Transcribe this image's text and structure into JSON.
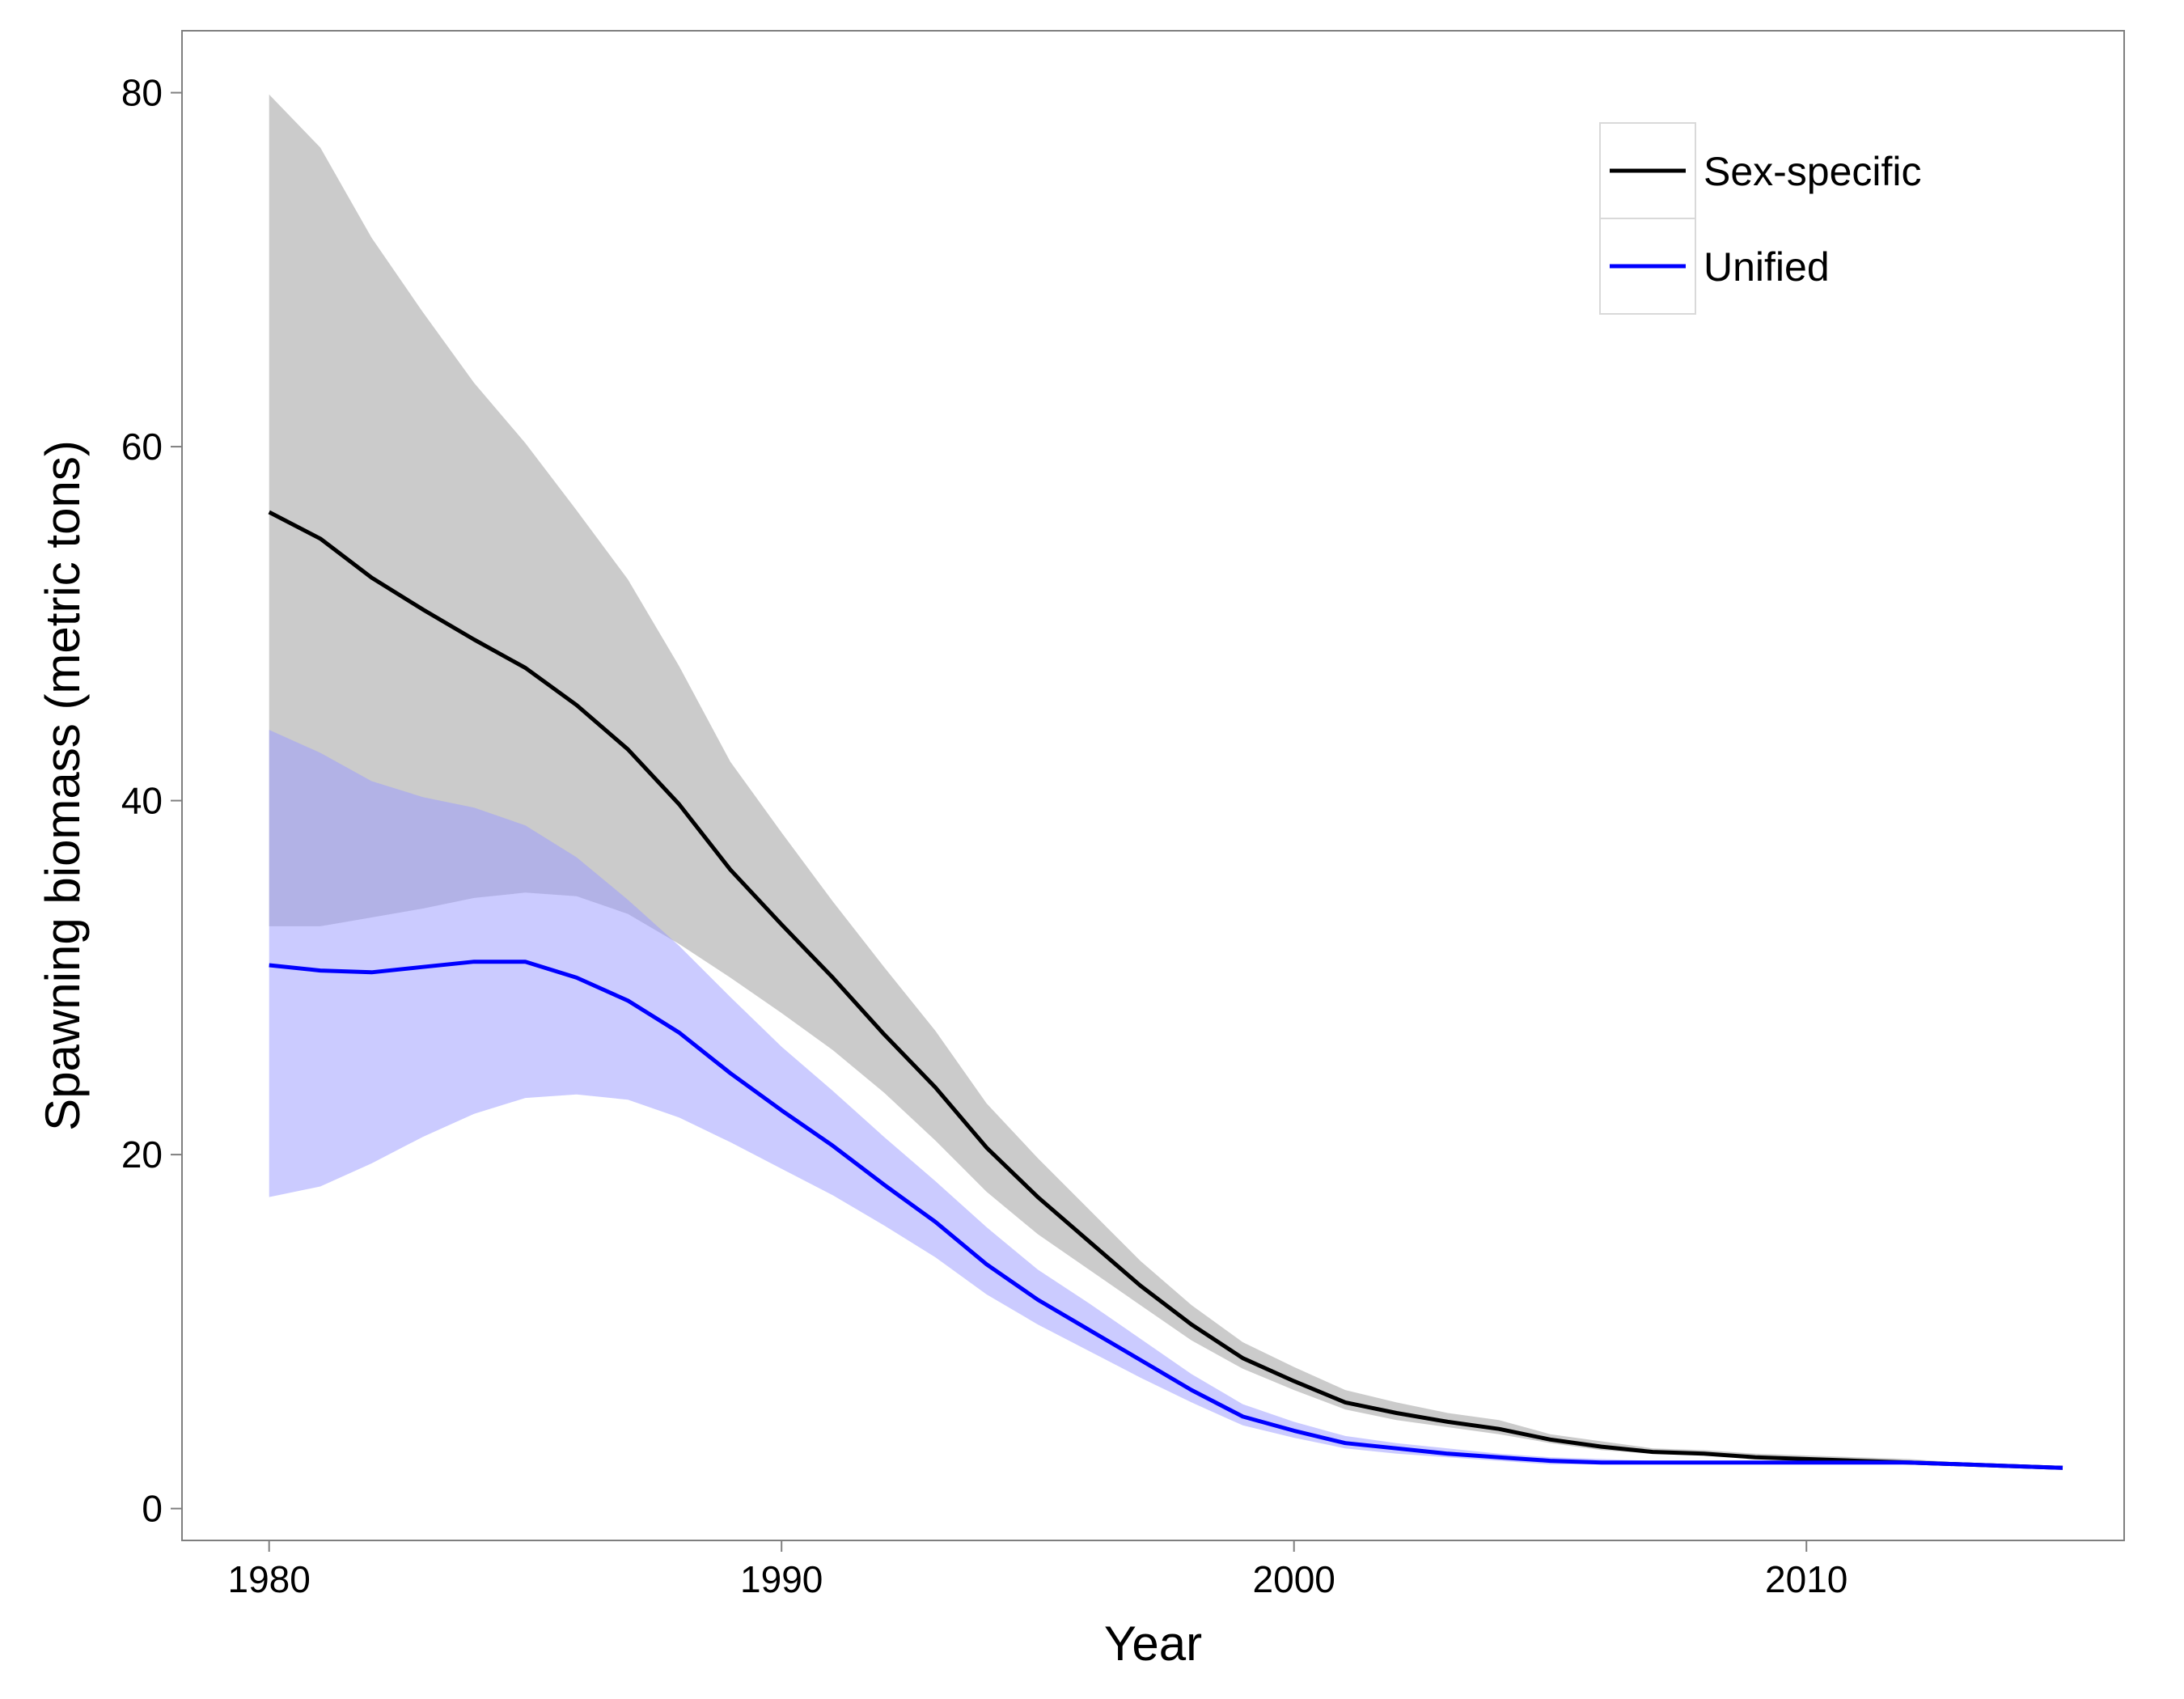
{
  "chart_data": {
    "type": "line",
    "xlabel": "Year",
    "ylabel": "Spawning biomass (metric tons)",
    "xlim": [
      1978.3,
      2016.2
    ],
    "ylim": [
      -1.8,
      83.5
    ],
    "xticks": [
      1980,
      1990,
      2000,
      2010
    ],
    "yticks": [
      0,
      20,
      40,
      60,
      80
    ],
    "grid": false,
    "legend_position": "top-right",
    "x": [
      1980,
      1981,
      1982,
      1983,
      1984,
      1985,
      1986,
      1987,
      1988,
      1989,
      1990,
      1991,
      1992,
      1993,
      1994,
      1995,
      1996,
      1997,
      1998,
      1999,
      2000,
      2001,
      2002,
      2003,
      2004,
      2005,
      2006,
      2007,
      2008,
      2009,
      2010,
      2011,
      2012,
      2013,
      2014,
      2015
    ],
    "series": [
      {
        "name": "Sex-specific",
        "color": "#000000",
        "band_color": "#bdbdbd",
        "values": [
          56.3,
          54.8,
          52.6,
          50.8,
          49.1,
          47.5,
          45.4,
          42.9,
          39.8,
          36.1,
          33.0,
          30.0,
          26.8,
          23.8,
          20.4,
          17.6,
          15.1,
          12.6,
          10.4,
          8.5,
          7.2,
          6.0,
          5.4,
          4.9,
          4.5,
          3.9,
          3.5,
          3.2,
          3.1,
          2.9,
          2.8,
          2.7,
          2.6,
          2.5,
          2.4,
          2.3
        ],
        "lower": [
          32.9,
          32.9,
          33.4,
          33.9,
          34.5,
          34.8,
          34.6,
          33.6,
          31.9,
          30.0,
          28.0,
          25.9,
          23.5,
          20.8,
          17.9,
          15.5,
          13.5,
          11.5,
          9.5,
          7.9,
          6.7,
          5.6,
          5.0,
          4.6,
          4.2,
          3.7,
          3.3,
          3.1,
          3.0,
          2.8,
          2.7,
          2.6,
          2.5,
          2.5,
          2.4,
          2.3
        ],
        "upper": [
          79.9,
          76.9,
          71.8,
          67.6,
          63.6,
          60.2,
          56.4,
          52.5,
          47.6,
          42.2,
          38.2,
          34.3,
          30.6,
          27.0,
          22.9,
          19.8,
          16.9,
          14.0,
          11.5,
          9.4,
          8.0,
          6.7,
          6.0,
          5.4,
          5.0,
          4.2,
          3.8,
          3.4,
          3.3,
          3.1,
          3.0,
          2.9,
          2.8,
          2.6,
          2.5,
          2.4
        ]
      },
      {
        "name": "Unified",
        "color": "#0000ff",
        "band_color": "#9b9bff",
        "values": [
          30.7,
          30.4,
          30.3,
          30.6,
          30.9,
          30.9,
          30.0,
          28.7,
          26.9,
          24.6,
          22.5,
          20.5,
          18.3,
          16.2,
          13.8,
          11.8,
          10.1,
          8.4,
          6.7,
          5.2,
          4.4,
          3.7,
          3.4,
          3.1,
          2.9,
          2.7,
          2.6,
          2.6,
          2.6,
          2.6,
          2.6,
          2.6,
          2.6,
          2.5,
          2.4,
          2.3
        ],
        "lower": [
          17.6,
          18.2,
          19.5,
          21.0,
          22.3,
          23.2,
          23.4,
          23.1,
          22.1,
          20.7,
          19.2,
          17.7,
          16.0,
          14.2,
          12.1,
          10.4,
          8.9,
          7.4,
          6.0,
          4.7,
          4.0,
          3.4,
          3.1,
          2.9,
          2.7,
          2.5,
          2.5,
          2.5,
          2.5,
          2.5,
          2.5,
          2.5,
          2.5,
          2.4,
          2.3,
          2.2
        ],
        "upper": [
          44.0,
          42.7,
          41.1,
          40.2,
          39.6,
          38.6,
          36.8,
          34.4,
          31.8,
          28.9,
          26.1,
          23.6,
          21.0,
          18.5,
          15.9,
          13.5,
          11.6,
          9.6,
          7.6,
          5.9,
          4.9,
          4.1,
          3.7,
          3.4,
          3.1,
          2.9,
          2.8,
          2.7,
          2.7,
          2.7,
          2.7,
          2.7,
          2.7,
          2.6,
          2.5,
          2.4
        ]
      }
    ]
  }
}
